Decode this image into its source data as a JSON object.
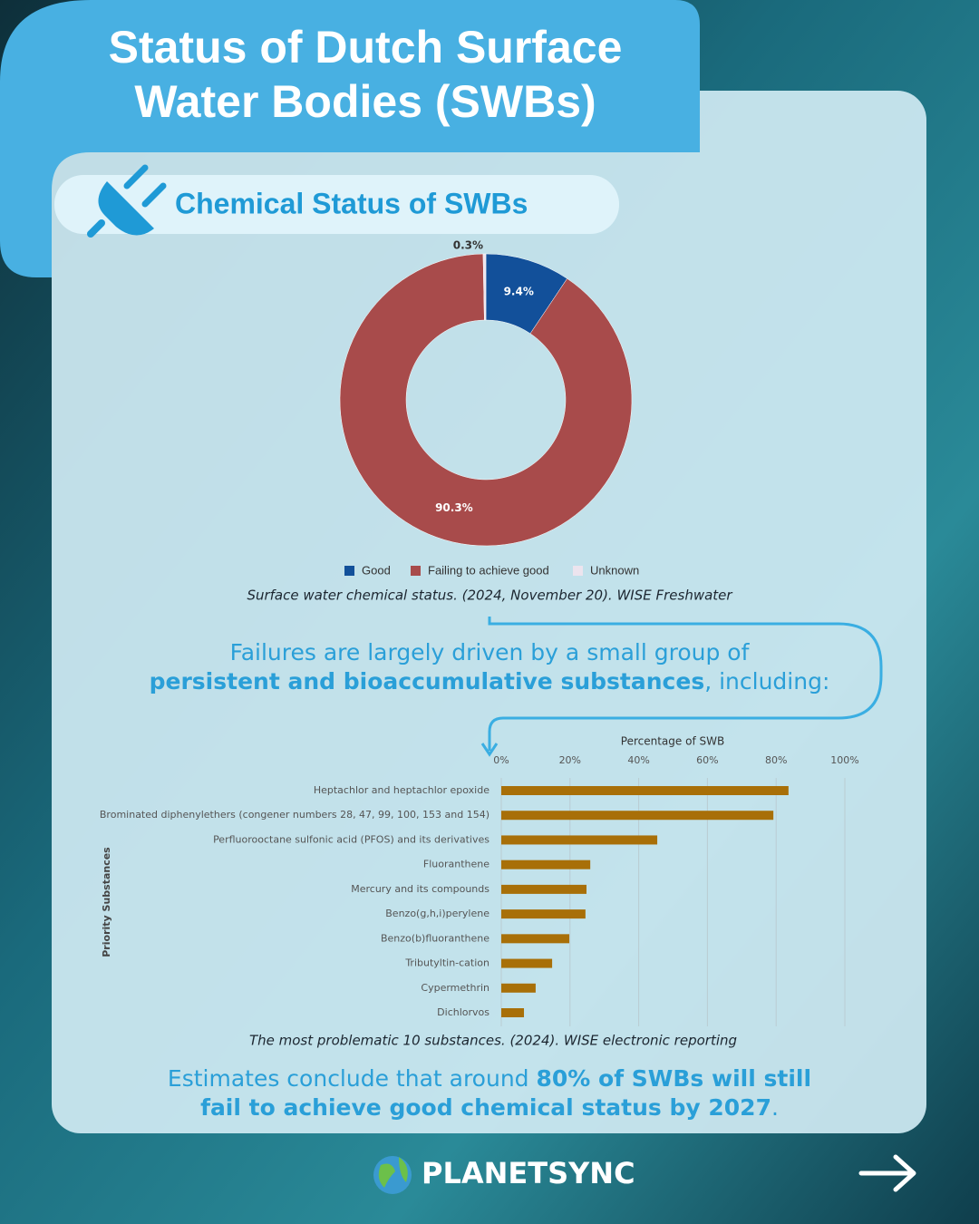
{
  "header": {
    "title_lines": [
      "Status of Dutch Surface",
      "Water Bodies (SWBs)"
    ],
    "subtitle": "Chemical Status of SWBs"
  },
  "chart_data": [
    {
      "type": "donut",
      "categories": [
        "Good",
        "Failing to achieve good",
        "Unknown"
      ],
      "values": [
        9.4,
        90.3,
        0.3
      ],
      "value_labels": [
        "9.4%",
        "90.3%",
        "0.3%"
      ],
      "colors": [
        "#12509a",
        "#a84b4b",
        "#ece4ee"
      ],
      "legend": "bottom",
      "caption": "Surface water chemical status. (2024, November 20). WISE Freshwater"
    },
    {
      "type": "hbar",
      "xlabel": "Percentage of SWB",
      "ylabel": "Priority Substances",
      "categories": [
        "Heptachlor and heptachlor epoxide",
        "Brominated diphenylethers (congener numbers 28, 47, 99, 100, 153 and 154)",
        "Perfluorooctane sulfonic acid (PFOS) and its derivatives",
        "Fluoranthene",
        "Mercury and its compounds",
        "Benzo(g,h,i)perylene",
        "Benzo(b)fluoranthene",
        "Tributyltin-cation",
        "Cypermethrin",
        "Dichlorvos"
      ],
      "values": [
        83.6,
        79.2,
        45.4,
        25.9,
        24.8,
        24.5,
        19.8,
        14.8,
        10,
        6.6
      ],
      "color": "#a86f08",
      "xlim": [
        0,
        100
      ],
      "xticks": [
        {
          "value": 0,
          "label": "0%"
        },
        {
          "value": 20,
          "label": "20%"
        },
        {
          "value": 40,
          "label": "40%"
        },
        {
          "value": 60,
          "label": "60%"
        },
        {
          "value": 80,
          "label": "80%"
        },
        {
          "value": 100,
          "label": "100%"
        }
      ],
      "grid": true,
      "caption": "The most problematic 10 substances. (2024). WISE electronic reporting"
    }
  ],
  "intro": {
    "line1": "Failures are largely driven by a small group of",
    "bold": "persistent and bioaccumulative substances",
    "rest": ", including:"
  },
  "conclusion": {
    "start": "Estimates conclude that around ",
    "bold1": "80% of SWBs will still",
    "bold2": "fail to achieve good chemical status by 2027",
    "end": "."
  },
  "footer": {
    "brand": "PLANETSYNC"
  }
}
